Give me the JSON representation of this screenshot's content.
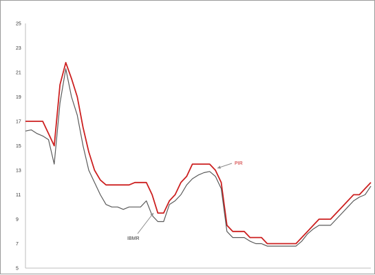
{
  "chart_data": {
    "type": "line",
    "title": "",
    "xlabel": "",
    "ylabel": "",
    "ylim": [
      5,
      25
    ],
    "yticks": [
      "5",
      "7",
      "9",
      "11",
      "13",
      "15",
      "17",
      "19",
      "21",
      "23",
      "25"
    ],
    "grid": false,
    "legend": "none",
    "x": [
      0,
      2,
      4,
      6,
      8,
      10,
      12,
      14,
      16,
      18,
      20,
      22,
      24,
      26,
      28,
      30,
      32,
      34,
      36,
      38,
      40,
      42,
      44,
      46,
      48,
      50,
      52,
      54,
      56,
      58,
      60,
      62,
      64,
      66,
      68,
      70,
      72,
      74,
      76,
      78,
      80,
      82,
      84,
      86,
      88,
      90,
      92,
      94,
      96,
      98,
      100
    ],
    "series": [
      {
        "name": "PIR",
        "color": "#cc1f1f",
        "values": [
          17.0,
          17.0,
          17.0,
          17.0,
          16.0,
          15.0,
          20.0,
          21.8,
          20.5,
          19.0,
          16.5,
          14.5,
          13.0,
          12.2,
          11.8,
          11.8,
          11.8,
          11.8,
          11.8,
          12.0,
          12.0,
          12.0,
          11.0,
          9.5,
          9.5,
          10.5,
          11.0,
          12.0,
          12.5,
          13.5,
          13.5,
          13.5,
          13.5,
          13.0,
          12.0,
          8.5,
          8.0,
          8.0,
          8.0,
          7.5,
          7.5,
          7.5,
          7.0,
          7.0,
          7.0,
          7.0,
          7.0,
          7.0,
          7.5,
          8.0,
          8.5
        ]
      },
      {
        "name": "IBMR",
        "color": "#5a5a5a",
        "values": [
          16.2,
          16.3,
          16.0,
          15.8,
          15.5,
          13.5,
          18.5,
          21.3,
          19.0,
          17.5,
          15.0,
          13.0,
          12.0,
          11.0,
          10.2,
          10.0,
          10.0,
          9.8,
          10.0,
          10.0,
          10.0,
          10.5,
          9.3,
          8.8,
          8.8,
          10.2,
          10.5,
          11.0,
          11.8,
          12.3,
          12.6,
          12.8,
          12.9,
          12.5,
          11.5,
          8.0,
          7.5,
          7.5,
          7.5,
          7.2,
          7.0,
          7.0,
          6.8,
          6.8,
          6.8,
          6.8,
          6.8,
          6.8,
          7.2,
          7.8,
          8.2
        ]
      }
    ],
    "tail": {
      "x": [
        100,
        102,
        104,
        106,
        108,
        110,
        112,
        114,
        116,
        118,
        120
      ],
      "PIR": [
        8.5,
        9.0,
        9.0,
        9.0,
        9.5,
        10.0,
        10.5,
        11.0,
        11.0,
        11.5,
        12.0
      ],
      "IBMR": [
        8.2,
        8.5,
        8.5,
        8.5,
        9.0,
        9.5,
        10.0,
        10.5,
        10.8,
        11.0,
        11.7
      ]
    },
    "annotations": [
      {
        "text": "PIR",
        "target_series": "PIR",
        "color": "#cc1f1f"
      },
      {
        "text": "IBMR",
        "target_series": "IBMR",
        "color": "#333333"
      }
    ]
  }
}
